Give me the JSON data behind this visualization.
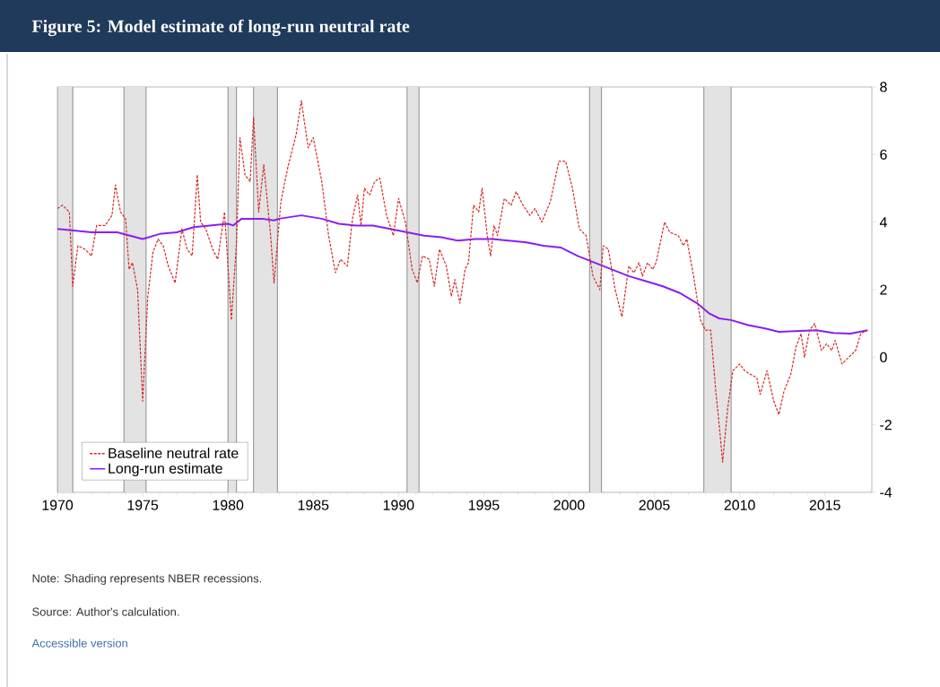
{
  "chart_data": {
    "type": "line",
    "title": "Figure 5: Model estimate of long-run neutral rate",
    "x": [
      1970,
      1970.3,
      1970.7,
      1970.9,
      1971.2,
      1971.6,
      1972,
      1972.3,
      1972.8,
      1973.2,
      1973.4,
      1973.7,
      1974,
      1974.2,
      1974.4,
      1974.7,
      1975,
      1975.3,
      1975.6,
      1975.9,
      1976.2,
      1976.5,
      1976.9,
      1977.3,
      1977.6,
      1977.9,
      1978.2,
      1978.4,
      1978.7,
      1979.1,
      1979.4,
      1979.8,
      1980.2,
      1980.5,
      1980.7,
      1981,
      1981.3,
      1981.5,
      1981.8,
      1982.1,
      1982.5,
      1982.7,
      1983.1,
      1983.5,
      1984,
      1984.3,
      1984.7,
      1985,
      1985.5,
      1985.9,
      1986.3,
      1986.6,
      1987,
      1987.3,
      1987.6,
      1987.8,
      1988,
      1988.3,
      1988.6,
      1988.9,
      1989.3,
      1989.7,
      1990,
      1990.4,
      1990.8,
      1991.1,
      1991.4,
      1991.8,
      1992.1,
      1992.4,
      1992.8,
      1993.1,
      1993.3,
      1993.6,
      1993.9,
      1994.1,
      1994.4,
      1994.7,
      1994.9,
      1995.2,
      1995.4,
      1995.6,
      1995.8,
      1996.2,
      1996.6,
      1996.9,
      1997.3,
      1997.7,
      1998,
      1998.4,
      1998.9,
      1999.4,
      1999.8,
      2000.2,
      2000.6,
      2001,
      2001.4,
      2001.8,
      2002,
      2002.3,
      2002.7,
      2003.1,
      2003.5,
      2003.8,
      2004.1,
      2004.3,
      2004.6,
      2004.9,
      2005.1,
      2005.6,
      2005.9,
      2006.4,
      2006.7,
      2006.9,
      2007.3,
      2007.7,
      2008,
      2008.3,
      2008.6,
      2008.8,
      2009,
      2009.3,
      2009.6,
      2010,
      2010.3,
      2010.6,
      2011,
      2011.2,
      2011.6,
      2012,
      2012.3,
      2012.6,
      2013,
      2013.3,
      2013.6,
      2013.8,
      2014.1,
      2014.4,
      2014.8,
      2015.1,
      2015.4,
      2015.6,
      2016,
      2016.4,
      2016.8,
      2017.1,
      2017.5
    ],
    "series": [
      {
        "name": "Baseline neutral rate",
        "color": "#d42a2a",
        "line_style": "dashed",
        "values": [
          4.4,
          4.5,
          4.3,
          2.1,
          3.3,
          3.2,
          3.0,
          3.9,
          3.9,
          4.2,
          5.1,
          4.3,
          4.1,
          2.6,
          2.8,
          2.0,
          -1.3,
          1.8,
          3.1,
          3.5,
          3.3,
          2.7,
          2.2,
          3.8,
          3.2,
          3.0,
          5.4,
          4.0,
          3.8,
          3.2,
          2.9,
          4.3,
          1.1,
          3.4,
          6.5,
          5.4,
          5.2,
          7.1,
          4.3,
          5.7,
          3.6,
          2.2,
          4.6,
          5.6,
          6.6,
          7.6,
          6.2,
          6.5,
          5.2,
          3.6,
          2.5,
          2.9,
          2.7,
          4.1,
          4.8,
          3.9,
          5.0,
          4.8,
          5.2,
          5.3,
          4.2,
          3.6,
          4.7,
          4.0,
          2.6,
          2.2,
          3.0,
          2.9,
          2.1,
          3.2,
          2.7,
          1.8,
          2.3,
          1.6,
          2.6,
          2.8,
          4.5,
          4.3,
          5.0,
          3.6,
          3.0,
          3.9,
          3.6,
          4.7,
          4.5,
          4.9,
          4.5,
          4.2,
          4.4,
          4.0,
          4.6,
          5.8,
          5.8,
          5.0,
          3.8,
          3.6,
          2.4,
          2.0,
          3.3,
          3.2,
          2.0,
          1.2,
          2.7,
          2.5,
          2.8,
          2.4,
          2.8,
          2.6,
          2.8,
          4.0,
          3.7,
          3.6,
          3.3,
          3.5,
          2.4,
          1.1,
          0.8,
          0.8,
          -1.0,
          -2.0,
          -3.1,
          -1.5,
          -0.4,
          -0.2,
          -0.4,
          -0.5,
          -0.6,
          -1.1,
          -0.4,
          -1.3,
          -1.7,
          -1.0,
          -0.5,
          0.3,
          0.7,
          0.0,
          0.8,
          1.0,
          0.2,
          0.4,
          0.2,
          0.5,
          -0.2,
          0.0,
          0.2,
          0.7,
          0.8
        ]
      },
      {
        "name": "Long-run estimate",
        "color": "#8b1ef0",
        "line_style": "solid",
        "x": [
          1970,
          1972,
          1973.5,
          1975,
          1976,
          1977,
          1978,
          1979,
          1980,
          1980.3,
          1980.8,
          1982,
          1982.7,
          1983,
          1984.3,
          1985.5,
          1986.5,
          1987.5,
          1988.5,
          1989.5,
          1990.5,
          1991.5,
          1992.5,
          1993.5,
          1994.5,
          1995.5,
          1996.5,
          1997.5,
          1998.5,
          1999.5,
          2000.5,
          2001.5,
          2002.5,
          2003.5,
          2004.5,
          2005.5,
          2006.5,
          2007.5,
          2008.2,
          2008.8,
          2009.5,
          2010.5,
          2011.5,
          2012.3,
          2013.5,
          2014.5,
          2015.5,
          2016.5,
          2017.5
        ],
        "values": [
          3.8,
          3.7,
          3.7,
          3.5,
          3.65,
          3.7,
          3.85,
          3.9,
          3.95,
          3.9,
          4.1,
          4.1,
          4.05,
          4.1,
          4.2,
          4.1,
          3.95,
          3.9,
          3.9,
          3.8,
          3.7,
          3.6,
          3.55,
          3.45,
          3.5,
          3.5,
          3.45,
          3.4,
          3.3,
          3.25,
          3.0,
          2.8,
          2.6,
          2.4,
          2.25,
          2.1,
          1.9,
          1.6,
          1.3,
          1.15,
          1.1,
          0.95,
          0.85,
          0.75,
          0.78,
          0.8,
          0.72,
          0.7,
          0.8
        ]
      }
    ],
    "xlim": [
      1970,
      2017.75
    ],
    "ylim": [
      -4,
      8
    ],
    "xticks": [
      1970,
      1975,
      1980,
      1985,
      1990,
      1995,
      2000,
      2005,
      2010,
      2015
    ],
    "yticks": [
      -4,
      -2,
      0,
      2,
      4,
      6,
      8
    ],
    "bands": [
      {
        "axis": "x",
        "from": 1970,
        "to": 1970.9,
        "color": "#e3e3e3"
      },
      {
        "axis": "x",
        "from": 1973.9,
        "to": 1975.2,
        "color": "#e3e3e3"
      },
      {
        "axis": "x",
        "from": 1980,
        "to": 1980.5,
        "color": "#e3e3e3"
      },
      {
        "axis": "x",
        "from": 1981.5,
        "to": 1982.9,
        "color": "#e3e3e3"
      },
      {
        "axis": "x",
        "from": 1990.5,
        "to": 1991.2,
        "color": "#e3e3e3"
      },
      {
        "axis": "x",
        "from": 2001.2,
        "to": 2001.9,
        "color": "#e3e3e3"
      },
      {
        "axis": "x",
        "from": 2007.9,
        "to": 2009.5,
        "color": "#e3e3e3"
      }
    ],
    "legend": "bottom left",
    "annotations": [
      "Note: Shading represents NBER recessions.",
      "Source: Author's calculation.",
      "Accessible version"
    ]
  }
}
